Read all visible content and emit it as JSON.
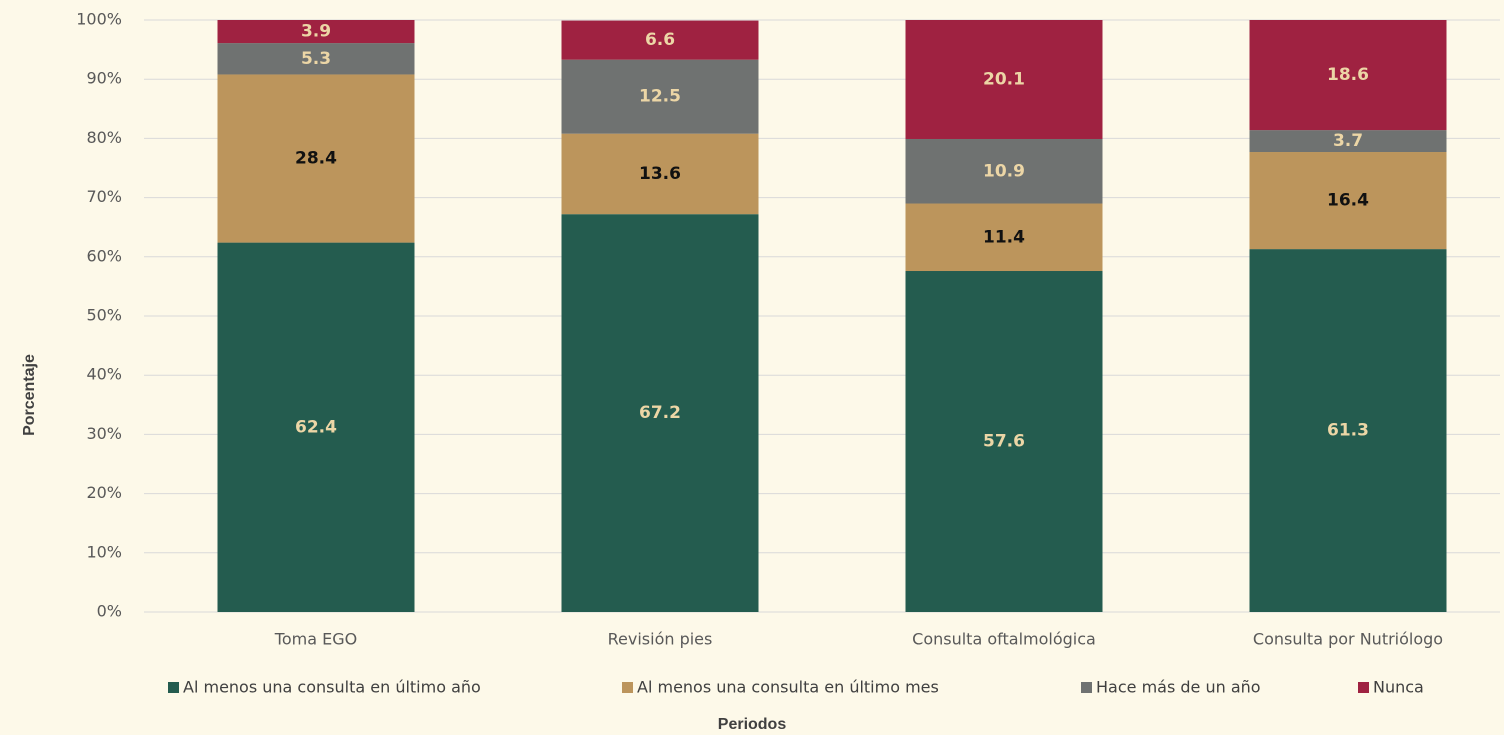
{
  "chart_data": {
    "type": "stacked_bar",
    "x_label": "Periodos",
    "y_label": "Porcentaje",
    "categories": [
      "Toma EGO",
      "Revisión pies",
      "Consulta oftalmológica",
      "Consulta por Nutriólogo"
    ],
    "series": [
      {
        "name": "Al menos una consulta en último año",
        "color": "#245c4f",
        "label_color": "#ecd6a6",
        "values": [
          62.4,
          67.2,
          57.6,
          61.3
        ]
      },
      {
        "name": "Al menos una consulta en último mes",
        "color": "#bc955c",
        "label_color": "#111111",
        "values": [
          28.4,
          13.6,
          11.4,
          16.4
        ]
      },
      {
        "name": "Hace más de un año",
        "color": "#6f7271",
        "label_color": "#ecd6a6",
        "values": [
          5.3,
          12.5,
          10.9,
          3.7
        ]
      },
      {
        "name": "Nunca",
        "color": "#9f2241",
        "label_color": "#ecd6a6",
        "values": [
          3.9,
          6.6,
          20.1,
          18.6
        ]
      }
    ],
    "ylim": [
      0,
      100
    ],
    "yticks": [
      {
        "value": 0,
        "label": "0%"
      },
      {
        "value": 10,
        "label": "10%"
      },
      {
        "value": 20,
        "label": "20%"
      },
      {
        "value": 30,
        "label": "30%"
      },
      {
        "value": 40,
        "label": "40%"
      },
      {
        "value": 50,
        "label": "50%"
      },
      {
        "value": 60,
        "label": "60%"
      },
      {
        "value": 70,
        "label": "70%"
      },
      {
        "value": 80,
        "label": "80%"
      },
      {
        "value": 90,
        "label": "90%"
      },
      {
        "value": 100,
        "label": "100%"
      }
    ],
    "grid": true,
    "legend": "bottom"
  }
}
